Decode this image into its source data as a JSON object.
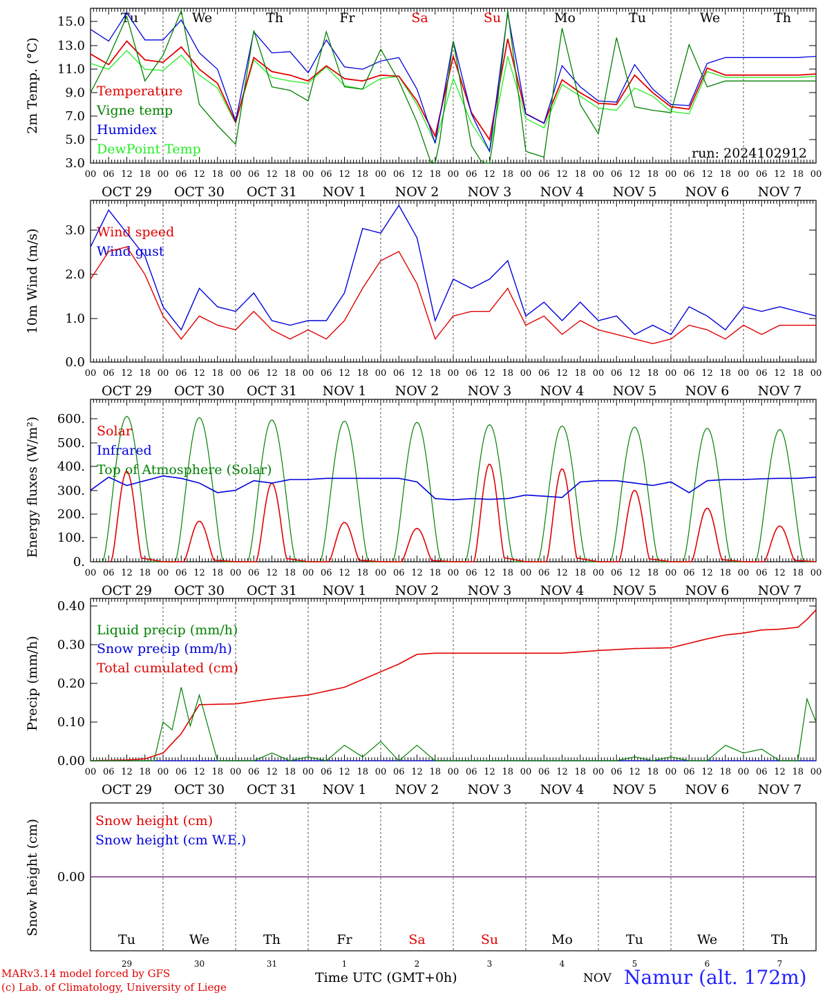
{
  "colors": {
    "red": "#e00000",
    "green": "#008000",
    "blue": "#0000dd",
    "lightgreen": "#22ee22",
    "purple": "#7a2a8a",
    "axis": "#000000"
  },
  "days": [
    "Tu",
    "We",
    "Th",
    "Fr",
    "Sa",
    "Su",
    "Mo",
    "Tu",
    "We",
    "Th"
  ],
  "weekend_days": [
    "Sa",
    "Su"
  ],
  "date_labels": [
    "OCT 29",
    "OCT 30",
    "OCT 31",
    "NOV  1",
    "NOV  2",
    "NOV  3",
    "NOV  4",
    "NOV  5",
    "NOV  6",
    "NOV  7"
  ],
  "hour_labels": [
    "00",
    "06",
    "12",
    "18"
  ],
  "final_hour_label": "00",
  "bottom_day_numbers": [
    "29",
    "30",
    "31",
    "1",
    "2",
    "3",
    "4",
    "5",
    "6",
    "7"
  ],
  "footer": {
    "credit_line1": "MARv3.14 model forced by GFS",
    "credit_line2": "(c) Lab. of Climatology, University of Liege",
    "xaxis_title": "Time UTC (GMT+0h)",
    "month": "NOV",
    "station": "Namur (alt. 172m)"
  },
  "chart_data": [
    {
      "type": "line",
      "ylabel": "2m Temp. (°C)",
      "ylim": [
        3.0,
        16.2
      ],
      "yticks": [
        "15.0",
        "13.0",
        "11.0",
        "9.0",
        "7.0",
        "5.0",
        "3.0"
      ],
      "annotation": "run: 2024102912",
      "x_unit": "hours since 00 UTC Oct 29",
      "series": [
        {
          "name": "Temperature",
          "color": "red",
          "x": [
            0,
            6,
            12,
            18,
            24,
            30,
            36,
            42,
            48,
            54,
            60,
            66,
            72,
            78,
            84,
            90,
            96,
            102,
            108,
            114,
            120,
            126,
            132,
            138,
            144,
            150,
            156,
            162,
            168,
            174,
            180,
            186,
            192,
            198,
            204,
            210,
            216,
            222,
            228,
            234,
            240
          ],
          "y": [
            12.3,
            11.4,
            13.4,
            11.8,
            11.6,
            12.9,
            11.0,
            9.8,
            6.5,
            12.0,
            10.8,
            10.5,
            10.0,
            11.3,
            10.2,
            10.0,
            10.5,
            10.4,
            8.3,
            5.3,
            12.1,
            7.3,
            5.0,
            13.6,
            7.2,
            6.4,
            10.1,
            9.0,
            8.1,
            8.0,
            10.5,
            9.0,
            7.8,
            7.6,
            11.1,
            10.5,
            10.5,
            10.5,
            10.5,
            10.5,
            10.6
          ]
        },
        {
          "name": "Vigne temp",
          "color": "green",
          "x": [
            0,
            6,
            12,
            18,
            24,
            30,
            36,
            42,
            48,
            54,
            60,
            66,
            72,
            78,
            84,
            90,
            96,
            102,
            108,
            114,
            120,
            126,
            132,
            138,
            144,
            150,
            156,
            162,
            168,
            174,
            180,
            186,
            192,
            198,
            204,
            210,
            216,
            222,
            228,
            234,
            240
          ],
          "y": [
            9.0,
            12.0,
            15.5,
            10.0,
            12.2,
            16.0,
            8.0,
            6.2,
            4.6,
            14.3,
            9.5,
            9.2,
            8.3,
            14.2,
            9.5,
            9.3,
            12.7,
            10.0,
            6.5,
            2.0,
            13.4,
            4.5,
            2.0,
            16.0,
            4.0,
            3.5,
            14.5,
            8.0,
            5.5,
            13.7,
            7.8,
            7.5,
            7.3,
            13.1,
            9.5,
            10.0,
            10.0,
            10.0,
            10.0,
            10.0,
            10.0
          ]
        },
        {
          "name": "Humidex",
          "color": "blue",
          "x": [
            0,
            6,
            12,
            18,
            24,
            30,
            36,
            42,
            48,
            54,
            60,
            66,
            72,
            78,
            84,
            90,
            96,
            102,
            108,
            114,
            120,
            126,
            132,
            138,
            144,
            150,
            156,
            162,
            168,
            174,
            180,
            186,
            192,
            198,
            204,
            210,
            216,
            222,
            228,
            234,
            240
          ],
          "y": [
            14.4,
            13.4,
            15.8,
            13.5,
            13.5,
            15.2,
            12.4,
            11.0,
            6.6,
            14.2,
            12.4,
            12.5,
            10.7,
            13.5,
            11.2,
            11.0,
            11.7,
            12.0,
            9.3,
            4.7,
            13.4,
            7.2,
            4.0,
            15.8,
            7.2,
            6.4,
            11.3,
            9.5,
            8.3,
            8.2,
            11.4,
            9.3,
            8.0,
            7.9,
            11.5,
            12.0,
            12.0,
            12.0,
            12.0,
            12.0,
            12.1
          ]
        },
        {
          "name": "DewPoint Temp",
          "color": "lightgreen",
          "x": [
            0,
            6,
            12,
            18,
            24,
            30,
            36,
            42,
            48,
            54,
            60,
            66,
            72,
            78,
            84,
            90,
            96,
            102,
            108,
            114,
            120,
            126,
            132,
            138,
            144,
            150,
            156,
            162,
            168,
            174,
            180,
            186,
            192,
            198,
            204,
            210,
            216,
            222,
            228,
            234,
            240
          ],
          "y": [
            11.5,
            11.0,
            12.6,
            11.0,
            10.9,
            12.2,
            10.5,
            9.4,
            6.4,
            11.8,
            10.3,
            10.0,
            9.8,
            11.2,
            9.6,
            9.3,
            10.2,
            10.4,
            8.0,
            4.7,
            10.2,
            6.4,
            4.0,
            12.1,
            6.8,
            6.0,
            9.7,
            8.7,
            7.7,
            7.5,
            9.4,
            8.7,
            7.4,
            7.2,
            10.8,
            10.3,
            10.3,
            10.3,
            10.3,
            10.3,
            10.4
          ]
        }
      ]
    },
    {
      "type": "line",
      "ylabel": "10m Wind (m/s)",
      "ylim": [
        0.0,
        3.5
      ],
      "yticks": [
        "3.0",
        "2.0",
        "1.0",
        "0.0"
      ],
      "series": [
        {
          "name": "Wind speed",
          "color": "red",
          "x": [
            0,
            6,
            12,
            18,
            24,
            30,
            36,
            42,
            48,
            54,
            60,
            66,
            72,
            78,
            84,
            90,
            96,
            102,
            108,
            114,
            120,
            126,
            132,
            138,
            144,
            150,
            156,
            162,
            168,
            174,
            180,
            186,
            192,
            198,
            204,
            210,
            216,
            222,
            228,
            234,
            240
          ],
          "y": [
            1.8,
            2.4,
            2.5,
            1.9,
            1.0,
            0.5,
            1.0,
            0.8,
            0.7,
            1.1,
            0.7,
            0.5,
            0.7,
            0.5,
            0.9,
            1.6,
            2.2,
            2.4,
            1.7,
            0.5,
            1.0,
            1.1,
            1.1,
            1.6,
            0.8,
            1.0,
            0.6,
            0.9,
            0.7,
            0.6,
            0.5,
            0.4,
            0.5,
            0.8,
            0.7,
            0.5,
            0.8,
            0.6,
            0.8,
            0.8,
            0.8
          ]
        },
        {
          "name": "Wind gust",
          "color": "blue",
          "x": [
            0,
            6,
            12,
            18,
            24,
            30,
            36,
            42,
            48,
            54,
            60,
            66,
            72,
            78,
            84,
            90,
            96,
            102,
            108,
            114,
            120,
            126,
            132,
            138,
            144,
            150,
            156,
            162,
            168,
            174,
            180,
            186,
            192,
            198,
            204,
            210,
            216,
            222,
            228,
            234,
            240
          ],
          "y": [
            2.5,
            3.3,
            2.8,
            2.3,
            1.2,
            0.7,
            1.6,
            1.2,
            1.1,
            1.5,
            0.9,
            0.8,
            0.9,
            0.9,
            1.5,
            2.9,
            2.8,
            3.4,
            2.7,
            0.9,
            1.8,
            1.6,
            1.8,
            2.2,
            1.0,
            1.3,
            0.9,
            1.3,
            0.9,
            1.0,
            0.6,
            0.8,
            0.6,
            1.2,
            1.0,
            0.7,
            1.2,
            1.1,
            1.2,
            1.1,
            1.0
          ]
        }
      ]
    },
    {
      "type": "line",
      "ylabel": "Energy fluxes (W/m²)",
      "ylim": [
        0,
        660
      ],
      "yticks": [
        "600.",
        "500.",
        "400.",
        "300.",
        "200.",
        "100.",
        "0."
      ],
      "series": [
        {
          "name": "Solar",
          "color": "red",
          "day_peaks": [
            380,
            170,
            330,
            165,
            140,
            410,
            390,
            300,
            225,
            150
          ]
        },
        {
          "name": "Infrared",
          "color": "blue",
          "x": [
            0,
            6,
            12,
            18,
            24,
            30,
            36,
            42,
            48,
            54,
            60,
            66,
            72,
            78,
            84,
            90,
            96,
            102,
            108,
            114,
            120,
            126,
            132,
            138,
            144,
            150,
            156,
            162,
            168,
            174,
            180,
            186,
            192,
            198,
            204,
            210,
            216,
            222,
            228,
            234,
            240
          ],
          "y": [
            300,
            355,
            320,
            340,
            360,
            350,
            330,
            290,
            300,
            340,
            330,
            345,
            345,
            350,
            350,
            350,
            350,
            350,
            335,
            265,
            260,
            265,
            262,
            265,
            280,
            275,
            270,
            335,
            340,
            340,
            330,
            320,
            335,
            290,
            340,
            345,
            345,
            348,
            350,
            350,
            355
          ]
        },
        {
          "name": "Top of Atmosphere (Solar)",
          "color": "green",
          "day_peaks": [
            610,
            605,
            595,
            590,
            585,
            575,
            570,
            565,
            560,
            555
          ]
        }
      ]
    },
    {
      "type": "line",
      "ylabel": "Precip (mm/h)",
      "ylim": [
        0.0,
        0.4
      ],
      "yticks": [
        "0.40",
        "0.30",
        "0.20",
        "0.10",
        "0.00"
      ],
      "series": [
        {
          "name": "Liquid precip (mm/h)",
          "color": "green",
          "x": [
            0,
            6,
            12,
            18,
            21,
            24,
            27,
            30,
            33,
            36,
            42,
            48,
            54,
            60,
            66,
            72,
            78,
            84,
            90,
            96,
            102,
            108,
            114,
            120,
            126,
            132,
            138,
            144,
            150,
            156,
            162,
            168,
            174,
            180,
            186,
            192,
            198,
            204,
            210,
            216,
            222,
            228,
            234,
            237,
            240
          ],
          "y": [
            0.0,
            0.0,
            0.0,
            0.0,
            0.0,
            0.1,
            0.08,
            0.19,
            0.09,
            0.17,
            0.0,
            0.0,
            0.0,
            0.02,
            0.0,
            0.01,
            0.0,
            0.04,
            0.01,
            0.05,
            0.0,
            0.04,
            0.0,
            0.0,
            0.0,
            0.0,
            0.0,
            0.0,
            0.0,
            0.0,
            0.0,
            0.0,
            0.0,
            0.01,
            0.0,
            0.01,
            0.0,
            0.0,
            0.04,
            0.02,
            0.03,
            0.0,
            0.0,
            0.16,
            0.1
          ]
        },
        {
          "name": "Snow precip (mm/h)",
          "color": "blue",
          "x": [
            0,
            240
          ],
          "y": [
            0.0,
            0.0
          ]
        },
        {
          "name": "Total cumulated (cm)",
          "color": "red",
          "x": [
            0,
            12,
            18,
            24,
            30,
            36,
            48,
            60,
            72,
            84,
            96,
            102,
            108,
            114,
            120,
            132,
            144,
            156,
            168,
            180,
            192,
            204,
            210,
            216,
            222,
            228,
            234,
            237,
            240
          ],
          "y": [
            0.0,
            0.002,
            0.005,
            0.02,
            0.07,
            0.145,
            0.147,
            0.16,
            0.17,
            0.19,
            0.23,
            0.25,
            0.275,
            0.278,
            0.278,
            0.278,
            0.278,
            0.278,
            0.285,
            0.29,
            0.292,
            0.315,
            0.325,
            0.33,
            0.338,
            0.34,
            0.345,
            0.365,
            0.39
          ]
        }
      ]
    },
    {
      "type": "line",
      "ylabel": "Snow height (cm)",
      "yticks": [
        "0.00"
      ],
      "series": [
        {
          "name": "Snow height (cm)",
          "color": "red",
          "x": [
            0,
            240
          ],
          "y": [
            0.0,
            0.0
          ]
        },
        {
          "name": "Snow height (cm W.E.)",
          "color": "blue",
          "x": [
            0,
            240
          ],
          "y": [
            0.0,
            0.0
          ]
        }
      ]
    }
  ]
}
